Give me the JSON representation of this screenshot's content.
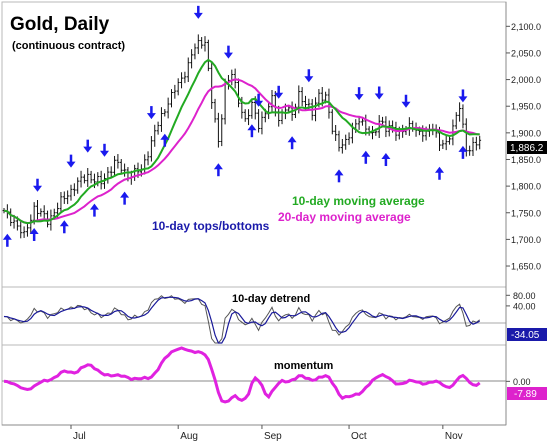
{
  "chart_data": {
    "type": "line",
    "title": "Gold, Daily",
    "subtitle": "(continuous contract)",
    "x_axis": {
      "month_labels": [
        "Jul",
        "Aug",
        "Sep",
        "Oct",
        "Nov"
      ]
    },
    "panels": [
      {
        "name": "price",
        "type": "ohlc",
        "ylim": [
          1620,
          2140
        ],
        "y_ticks": [
          1650,
          1700,
          1750,
          1800,
          1850,
          1900,
          1950,
          2000,
          2050,
          2100
        ],
        "y_tick_labels": [
          "1,650.0",
          "1,700.0",
          "1,750.0",
          "1,800.0",
          "1,850.0",
          "1,900.0",
          "1,950.0",
          "2,000.0",
          "2,050.0",
          "2,100.0"
        ],
        "close_anchors": [
          [
            0,
            1750
          ],
          [
            3,
            1735
          ],
          [
            6,
            1705
          ],
          [
            9,
            1760
          ],
          [
            13,
            1735
          ],
          [
            17,
            1770
          ],
          [
            21,
            1800
          ],
          [
            25,
            1820
          ],
          [
            29,
            1805
          ],
          [
            33,
            1845
          ],
          [
            37,
            1820
          ],
          [
            41,
            1830
          ],
          [
            45,
            1900
          ],
          [
            49,
            1960
          ],
          [
            53,
            2000
          ],
          [
            57,
            2060
          ],
          [
            60,
            2075
          ],
          [
            62,
            1960
          ],
          [
            64,
            1880
          ],
          [
            66,
            1990
          ],
          [
            68,
            2010
          ],
          [
            70,
            1960
          ],
          [
            72,
            1925
          ],
          [
            74,
            1950
          ],
          [
            76,
            1915
          ],
          [
            78,
            1940
          ],
          [
            80,
            1960
          ],
          [
            82,
            1925
          ],
          [
            84,
            1950
          ],
          [
            86,
            1930
          ],
          [
            88,
            1975
          ],
          [
            90,
            1955
          ],
          [
            92,
            1935
          ],
          [
            94,
            1975
          ],
          [
            96,
            1965
          ],
          [
            98,
            1905
          ],
          [
            100,
            1880
          ],
          [
            102,
            1880
          ],
          [
            104,
            1905
          ],
          [
            106,
            1930
          ],
          [
            108,
            1905
          ],
          [
            110,
            1895
          ],
          [
            112,
            1925
          ],
          [
            114,
            1905
          ],
          [
            116,
            1910
          ],
          [
            118,
            1900
          ],
          [
            120,
            1905
          ],
          [
            122,
            1915
          ],
          [
            124,
            1900
          ],
          [
            126,
            1895
          ],
          [
            128,
            1915
          ],
          [
            130,
            1880
          ],
          [
            132,
            1875
          ],
          [
            134,
            1915
          ],
          [
            136,
            1950
          ],
          [
            138,
            1865
          ],
          [
            140,
            1880
          ],
          [
            142,
            1886
          ]
        ],
        "series": [
          {
            "name": "10-day moving average",
            "color": "#22aa22"
          },
          {
            "name": "20-day moving average",
            "color": "#dd22cc"
          }
        ],
        "last_price": "1,886.2",
        "annotations": [
          "10-day tops/bottoms",
          "10-day moving average",
          "20-day moving average"
        ],
        "tops_bars": [
          10,
          20,
          25,
          30,
          44,
          58,
          67,
          76,
          82,
          91,
          106,
          112,
          120,
          137
        ],
        "bottoms_bars": [
          1,
          9,
          18,
          27,
          36,
          48,
          64,
          74,
          86,
          100,
          108,
          114,
          130,
          137
        ]
      },
      {
        "name": "detrend",
        "label": "10-day detrend",
        "ylim": [
          -100,
          100
        ],
        "y_ticks": [
          80,
          40
        ],
        "y_tick_labels": [
          "80.00",
          "40.00"
        ],
        "current_value_label": "-34.05"
      },
      {
        "name": "momentum",
        "label": "momentum",
        "ylim": [
          -200,
          160
        ],
        "y_ticks": [
          0
        ],
        "y_tick_labels": [
          "0.00"
        ],
        "current_value_label": "-7.89"
      }
    ],
    "grid": false,
    "legend": "inline-annotations"
  }
}
